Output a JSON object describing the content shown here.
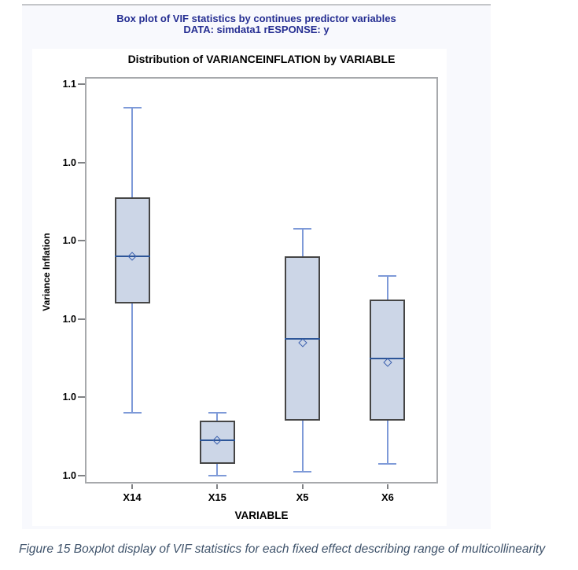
{
  "results_header": {
    "line1": "Box plot of VIF statistics by continues predictor variables",
    "line2": "DATA: simdata1 rESPONSE: y"
  },
  "caption": {
    "text": "Figure 15 Boxplot display of VIF statistics for each fixed effect describing range of multicollinearity"
  },
  "colors": {
    "header_text": "#252e92",
    "caption_text": "#3f536b",
    "panel_background": "#f8f9fd",
    "panel_top_border": "#c4c6c9",
    "chart_background": "#ffffff",
    "frame_border": "#a7a9ac",
    "tick_mark": "#808285",
    "box_fill": "#ccd6e7",
    "box_border": "#454545",
    "whisker": "#7e9ad8",
    "median_line": "#2d5698",
    "mean_marker": "#3a5fae"
  },
  "chart_data": {
    "type": "boxplot",
    "title": "Distribution of VARIANCEINFLATION by VARIABLE",
    "xlabel": "VARIABLE",
    "ylabel": "Variance Inflation",
    "categories": [
      "X14",
      "X15",
      "X5",
      "X6"
    ],
    "ylim": [
      1.0,
      1.1
    ],
    "grid": false,
    "legend": "none",
    "y_ticks": [
      {
        "value": 1.1,
        "label": "1.1"
      },
      {
        "value": 1.08,
        "label": "1.0"
      },
      {
        "value": 1.06,
        "label": "1.0"
      },
      {
        "value": 1.04,
        "label": "1.0"
      },
      {
        "value": 1.02,
        "label": "1.0"
      },
      {
        "value": 1.0,
        "label": "1.0"
      }
    ],
    "series": [
      {
        "name": "X14",
        "min": 1.016,
        "q1": 1.044,
        "median": 1.056,
        "mean": 1.056,
        "q3": 1.071,
        "max": 1.094
      },
      {
        "name": "X15",
        "min": 1.0,
        "q1": 1.003,
        "median": 1.009,
        "mean": 1.009,
        "q3": 1.014,
        "max": 1.016
      },
      {
        "name": "X5",
        "min": 1.001,
        "q1": 1.014,
        "median": 1.035,
        "mean": 1.034,
        "q3": 1.056,
        "max": 1.063
      },
      {
        "name": "X6",
        "min": 1.003,
        "q1": 1.014,
        "median": 1.03,
        "mean": 1.029,
        "q3": 1.045,
        "max": 1.051
      }
    ]
  }
}
